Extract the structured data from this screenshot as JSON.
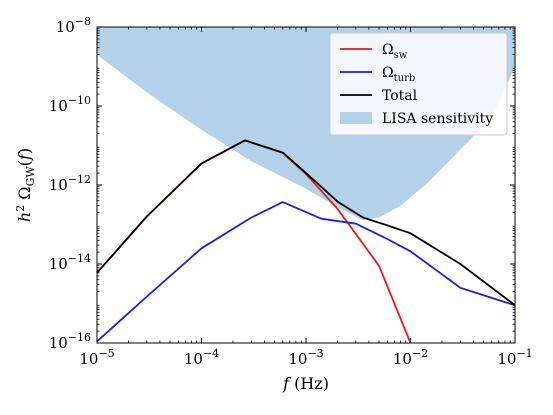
{
  "chart_data": {
    "type": "line",
    "x_scale": "log",
    "y_scale": "log",
    "xlim": [
      1e-05,
      0.1
    ],
    "ylim": [
      1e-16,
      1e-08
    ],
    "xlabel": "f (Hz)",
    "ylabel": "h² Ω_GW(f)",
    "legend_position": "top-right",
    "x_ticks": [
      {
        "value": 1e-05,
        "base": "10",
        "exp": "−5"
      },
      {
        "value": 0.0001,
        "base": "10",
        "exp": "−4"
      },
      {
        "value": 0.001,
        "base": "10",
        "exp": "−3"
      },
      {
        "value": 0.01,
        "base": "10",
        "exp": "−2"
      },
      {
        "value": 0.1,
        "base": "10",
        "exp": "−1"
      }
    ],
    "y_ticks": [
      {
        "value": 1e-16,
        "base": "10",
        "exp": "−16"
      },
      {
        "value": 1e-14,
        "base": "10",
        "exp": "−14"
      },
      {
        "value": 1e-12,
        "base": "10",
        "exp": "−12"
      },
      {
        "value": 1e-10,
        "base": "10",
        "exp": "−10"
      },
      {
        "value": 1e-08,
        "base": "10",
        "exp": "−8"
      }
    ],
    "series": [
      {
        "name": "Ω_sw",
        "color": "#e41a1c",
        "x": [
          1e-05,
          3e-05,
          0.0001,
          0.00026,
          0.0006,
          0.001,
          0.002,
          0.005,
          0.01
        ],
        "y": [
          6e-15,
          1.6e-13,
          3.5e-12,
          1.35e-11,
          6.5e-12,
          1.9e-12,
          2.5e-13,
          9e-15,
          1e-16
        ]
      },
      {
        "name": "Ω_turb",
        "color": "#1f1fd6",
        "x": [
          1e-05,
          3e-05,
          0.0001,
          0.0003,
          0.0006,
          0.0014,
          0.003,
          0.006,
          0.01,
          0.03,
          0.1
        ],
        "y": [
          1.1e-16,
          1.5e-15,
          2.5e-14,
          1.5e-13,
          3.7e-13,
          1.4e-13,
          1.05e-13,
          4.3e-14,
          2.1e-14,
          2.5e-15,
          9e-16
        ]
      },
      {
        "name": "Total",
        "color": "#000000",
        "x": [
          1e-05,
          3e-05,
          0.0001,
          0.00026,
          0.0006,
          0.001,
          0.002,
          0.0035,
          0.006,
          0.01,
          0.03,
          0.1
        ],
        "y": [
          6e-15,
          1.6e-13,
          3.5e-12,
          1.35e-11,
          6.6e-12,
          2e-12,
          3.8e-13,
          1.5e-13,
          9.5e-14,
          6e-14,
          1e-14,
          9e-16
        ]
      }
    ],
    "sensitivity": {
      "name": "LISA sensitivity",
      "color": "#b3d1e8",
      "x": [
        1e-05,
        3e-05,
        0.0001,
        0.0003,
        0.001,
        0.002,
        0.0035,
        0.005,
        0.008,
        0.015,
        0.03,
        0.06,
        0.1
      ],
      "y": [
        2e-09,
        2.2e-10,
        2.5e-11,
        4e-12,
        8e-13,
        2.7e-13,
        1.3e-13,
        1.5e-13,
        3e-13,
        1.2e-12,
        8e-12,
        5e-11,
        1e-09
      ]
    },
    "legend": [
      {
        "label": "Ω",
        "sub": "sw",
        "color": "#e41a1c",
        "kind": "line"
      },
      {
        "label": "Ω",
        "sub": "turb",
        "color": "#1f1fd6",
        "kind": "line"
      },
      {
        "label": "Total",
        "sub": "",
        "color": "#000000",
        "kind": "line"
      },
      {
        "label": "LISA sensitivity",
        "sub": "",
        "color": "#b3d1e8",
        "kind": "patch"
      }
    ]
  }
}
